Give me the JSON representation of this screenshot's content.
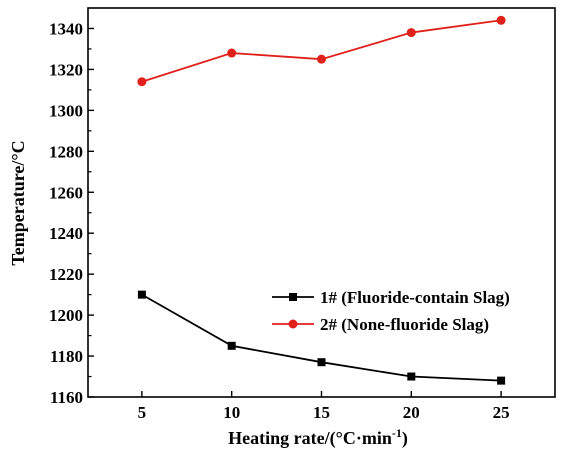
{
  "chart_data": {
    "type": "line",
    "x": [
      5,
      10,
      15,
      20,
      25
    ],
    "xticks": [
      "5",
      "10",
      "15",
      "20",
      "25"
    ],
    "yticks": [
      "1160",
      "1180",
      "1200",
      "1220",
      "1240",
      "1260",
      "1280",
      "1300",
      "1320",
      "1340"
    ],
    "xlim": [
      2,
      28
    ],
    "ylim": [
      1160,
      1350
    ],
    "xlabel": "Heating rate/(°C·min",
    "xlabel_sup": "-1",
    "xlabel_end": ")",
    "ylabel": "Temperature/°C",
    "grid": false,
    "legend_position": "center-right",
    "series": [
      {
        "name": "1# (Fluoride-contain Slag)",
        "color": "#000000",
        "marker": "square",
        "values": [
          1210,
          1185,
          1177,
          1170,
          1168
        ]
      },
      {
        "name": "2# (None-fluoride Slag)",
        "color": "#e0201b",
        "marker": "circle",
        "values": [
          1314,
          1328,
          1325,
          1338,
          1344
        ]
      }
    ]
  }
}
